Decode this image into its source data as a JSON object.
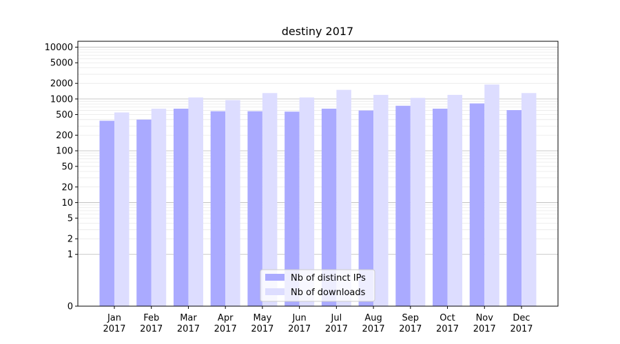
{
  "chart_data": {
    "type": "bar",
    "title": "destiny 2017",
    "xlabel": "",
    "ylabel": "",
    "y_scale": "symlog",
    "ylim": [
      0,
      13000
    ],
    "y_ticks": [
      0,
      1,
      2,
      5,
      10,
      20,
      50,
      100,
      200,
      500,
      1000,
      2000,
      5000,
      10000
    ],
    "y_tick_labels": [
      "0",
      "1",
      "2",
      "5",
      "10",
      "20",
      "50",
      "100",
      "200",
      "500",
      "1000",
      "2000",
      "5000",
      "10000"
    ],
    "grid": true,
    "legend_position": "bottom-center",
    "categories": [
      [
        "Jan",
        "2017"
      ],
      [
        "Feb",
        "2017"
      ],
      [
        "Mar",
        "2017"
      ],
      [
        "Apr",
        "2017"
      ],
      [
        "May",
        "2017"
      ],
      [
        "Jun",
        "2017"
      ],
      [
        "Jul",
        "2017"
      ],
      [
        "Aug",
        "2017"
      ],
      [
        "Sep",
        "2017"
      ],
      [
        "Oct",
        "2017"
      ],
      [
        "Nov",
        "2017"
      ],
      [
        "Dec",
        "2017"
      ]
    ],
    "series": [
      {
        "name": "Nb of distinct IPs",
        "color": "#aaaaff",
        "values": [
          380,
          400,
          650,
          580,
          580,
          570,
          650,
          600,
          740,
          650,
          820,
          610
        ]
      },
      {
        "name": "Nb of downloads",
        "color": "#ddddff",
        "values": [
          550,
          650,
          1070,
          950,
          1300,
          1070,
          1500,
          1200,
          1050,
          1200,
          1900,
          1300
        ]
      }
    ]
  }
}
